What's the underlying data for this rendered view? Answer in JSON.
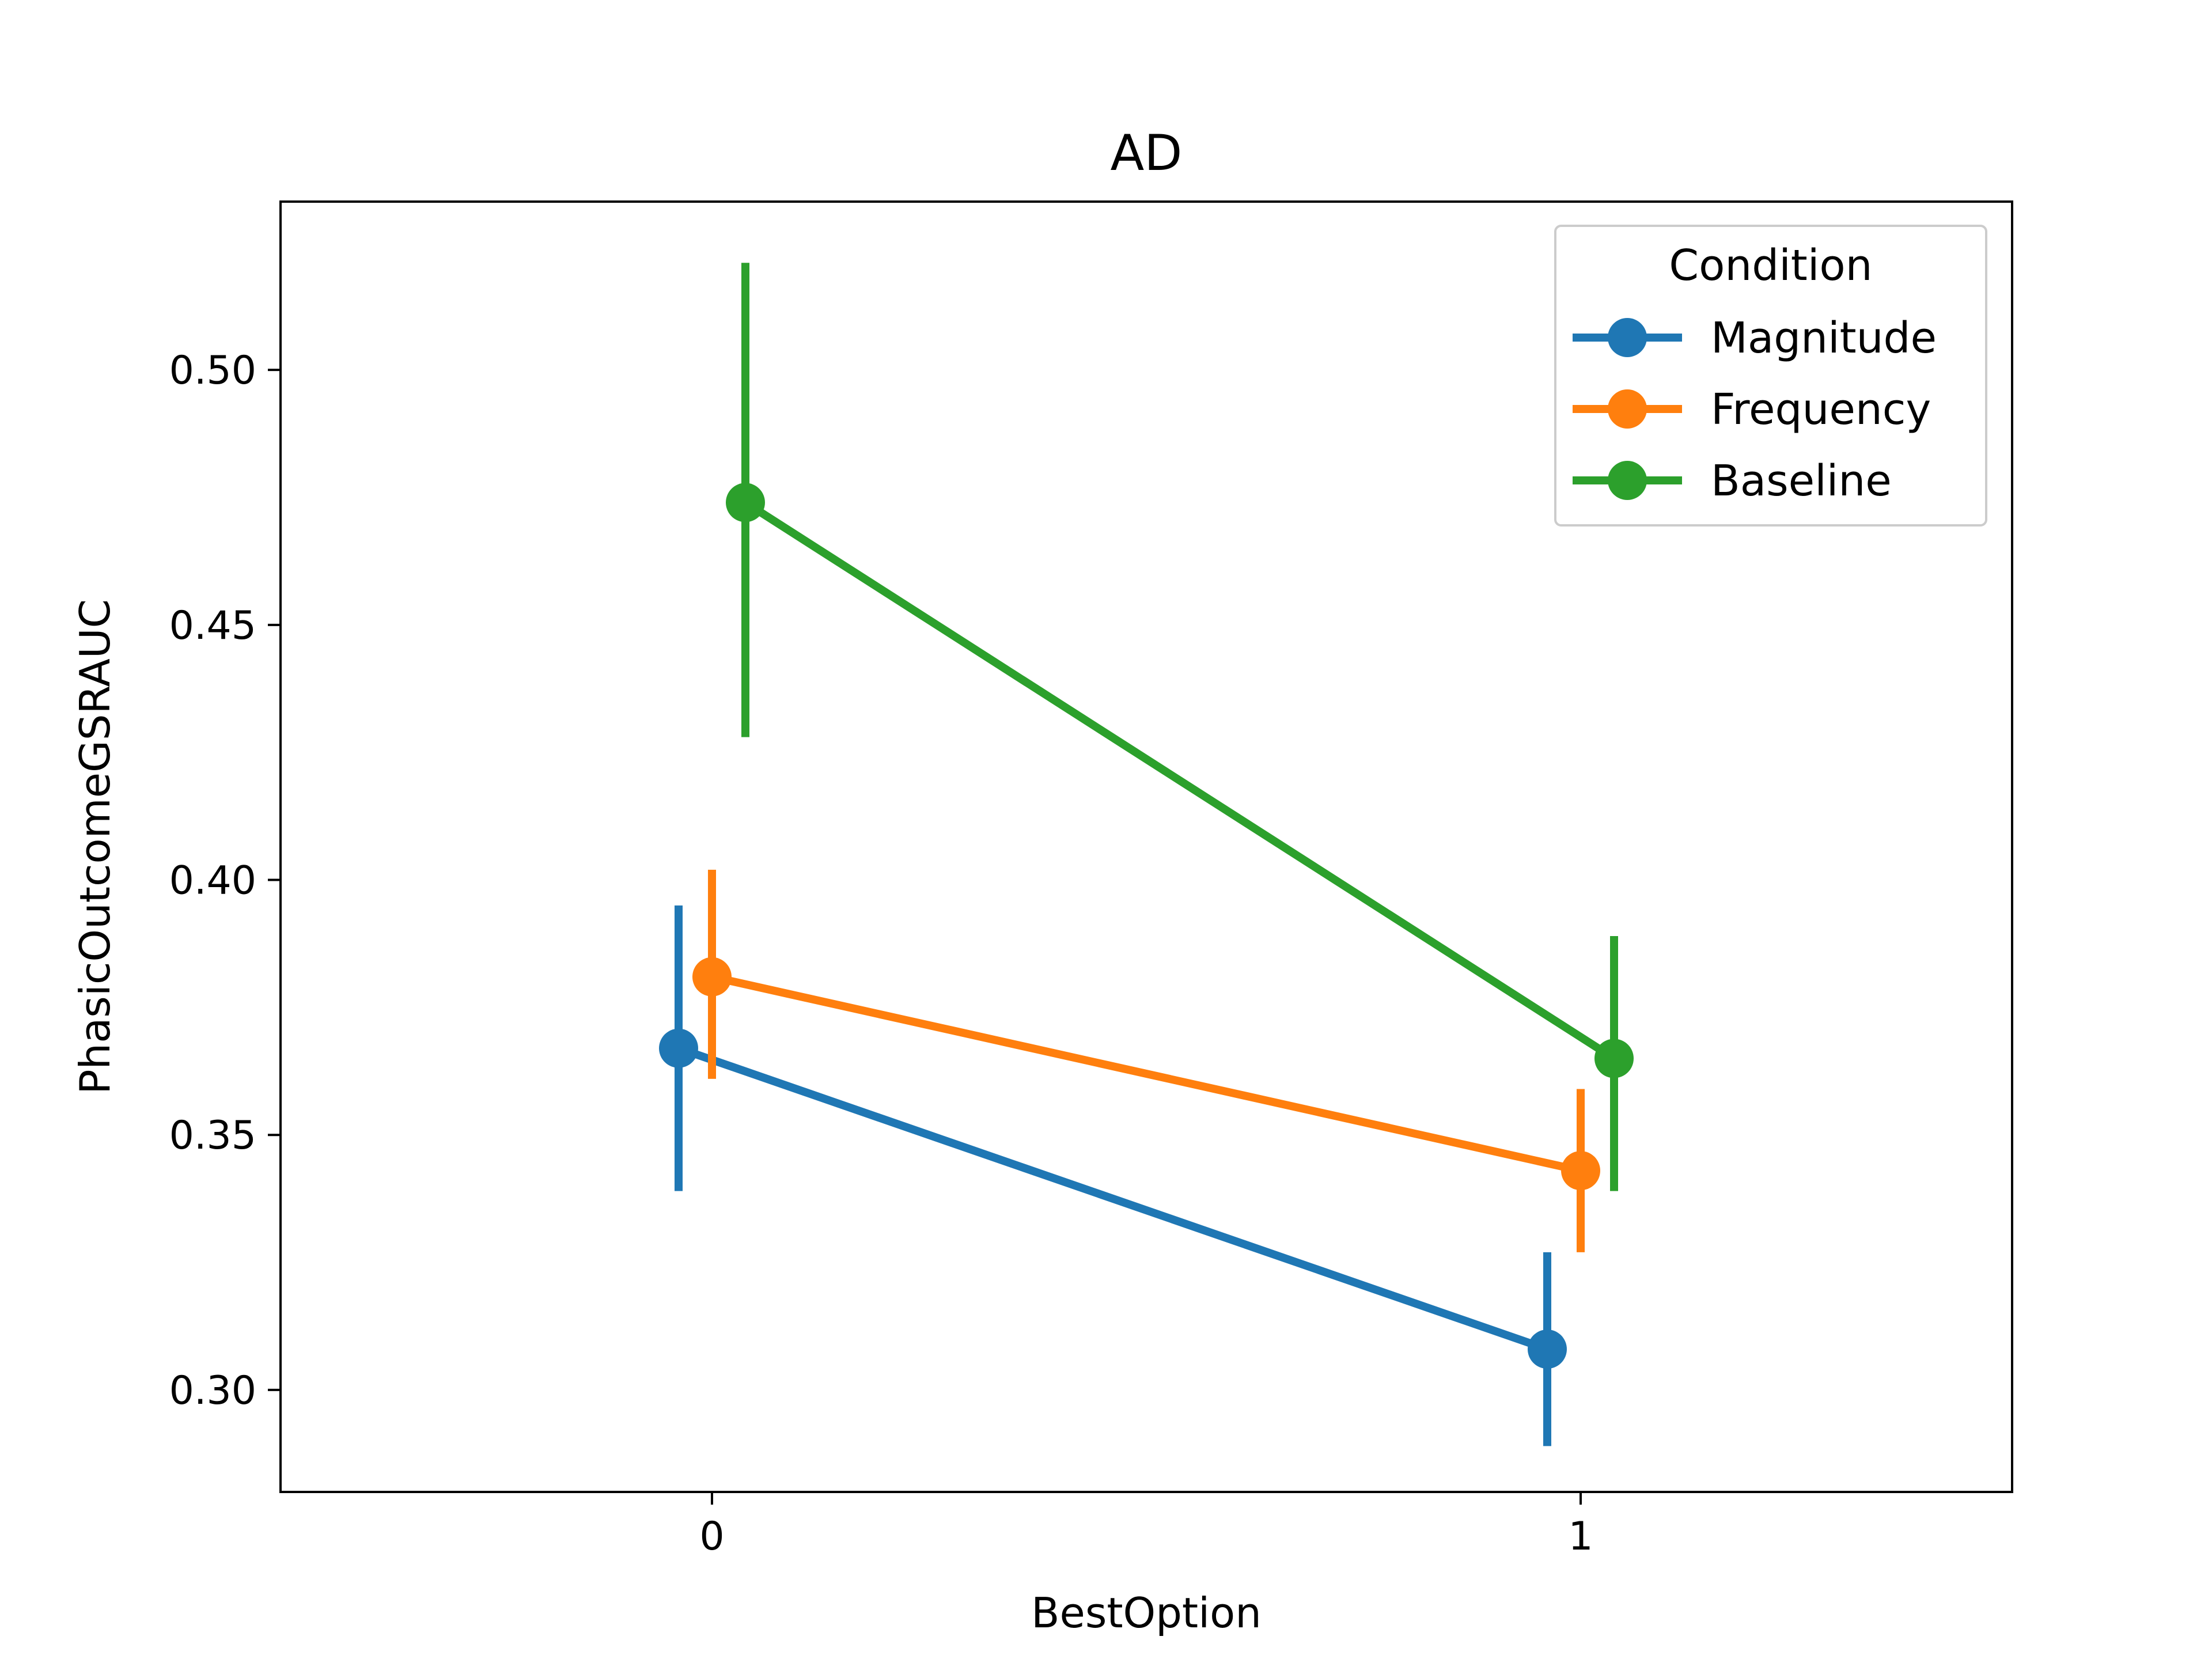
{
  "chart_data": {
    "type": "line",
    "title": "AD",
    "xlabel": "BestOption",
    "ylabel": "PhasicOutcomeGSRAUC",
    "categories": [
      "0",
      "1"
    ],
    "ylim": [
      0.28,
      0.533
    ],
    "yticks": [
      "0.30",
      "0.35",
      "0.40",
      "0.45",
      "0.50"
    ],
    "grid": false,
    "legend": {
      "title": "Condition",
      "placement": "top-right"
    },
    "series": [
      {
        "name": "Magnitude",
        "color": "#1f77b4",
        "values": [
          0.367,
          0.308
        ],
        "ci_low": [
          0.339,
          0.289
        ],
        "ci_high": [
          0.395,
          0.327
        ]
      },
      {
        "name": "Frequency",
        "color": "#ff7f0e",
        "values": [
          0.381,
          0.343
        ],
        "ci_low": [
          0.361,
          0.327
        ],
        "ci_high": [
          0.402,
          0.359
        ]
      },
      {
        "name": "Baseline",
        "color": "#2ca02c",
        "values": [
          0.474,
          0.365
        ],
        "ci_low": [
          0.428,
          0.339
        ],
        "ci_high": [
          0.521,
          0.389
        ]
      }
    ]
  }
}
